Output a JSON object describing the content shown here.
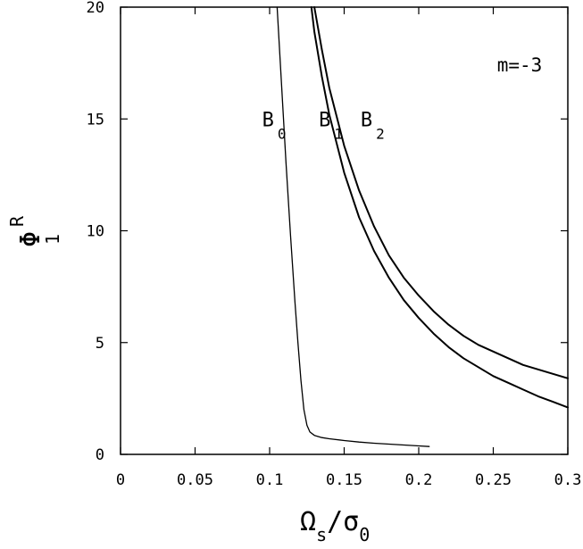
{
  "chart_data": {
    "type": "line",
    "title": "",
    "annotation": "m=-3",
    "xlabel": {
      "main": "Ω",
      "sub": "s",
      "slash": "/σ",
      "sub2": "0"
    },
    "ylabel": {
      "main": "Φ",
      "sub": "1",
      "sup": "R"
    },
    "xlim": [
      0,
      0.3
    ],
    "ylim": [
      0,
      20
    ],
    "xticks": [
      {
        "value": 0,
        "label": "0"
      },
      {
        "value": 0.05,
        "label": "0.05"
      },
      {
        "value": 0.1,
        "label": "0.1"
      },
      {
        "value": 0.15,
        "label": "0.15"
      },
      {
        "value": 0.2,
        "label": "0.2"
      },
      {
        "value": 0.25,
        "label": "0.25"
      },
      {
        "value": 0.3,
        "label": "0.3"
      }
    ],
    "yticks": [
      {
        "value": 0,
        "label": "0"
      },
      {
        "value": 5,
        "label": "5"
      },
      {
        "value": 10,
        "label": "10"
      },
      {
        "value": 15,
        "label": "15"
      },
      {
        "value": 20,
        "label": "20"
      }
    ],
    "grid": false,
    "series": [
      {
        "name": "B",
        "sub": "0",
        "label_at": [
          0.095,
          15
        ],
        "x": [
          0.105,
          0.108,
          0.111,
          0.114,
          0.117,
          0.119,
          0.121,
          0.123,
          0.125,
          0.127,
          0.13,
          0.135,
          0.14,
          0.15,
          0.16,
          0.17,
          0.18,
          0.19,
          0.2,
          0.207
        ],
        "y": [
          20.0,
          16.5,
          13.0,
          9.8,
          6.8,
          5.0,
          3.3,
          2.0,
          1.3,
          1.0,
          0.85,
          0.75,
          0.7,
          0.62,
          0.55,
          0.5,
          0.46,
          0.42,
          0.38,
          0.35
        ]
      },
      {
        "name": "B",
        "sub": "1",
        "label_at": [
          0.133,
          15
        ],
        "x": [
          0.128,
          0.13,
          0.135,
          0.14,
          0.15,
          0.16,
          0.17,
          0.18,
          0.19,
          0.2,
          0.21,
          0.22,
          0.23,
          0.24,
          0.25,
          0.26,
          0.27,
          0.28,
          0.29,
          0.3
        ],
        "y": [
          20.0,
          18.9,
          16.9,
          15.2,
          12.6,
          10.6,
          9.1,
          7.9,
          6.9,
          6.1,
          5.4,
          4.8,
          4.3,
          3.9,
          3.5,
          3.2,
          2.9,
          2.6,
          2.35,
          2.1
        ]
      },
      {
        "name": "B",
        "sub": "2",
        "label_at": [
          0.161,
          15
        ],
        "x": [
          0.13,
          0.135,
          0.14,
          0.15,
          0.16,
          0.17,
          0.18,
          0.19,
          0.2,
          0.21,
          0.22,
          0.23,
          0.24,
          0.25,
          0.26,
          0.27,
          0.28,
          0.29,
          0.3
        ],
        "y": [
          20.0,
          18.1,
          16.4,
          13.8,
          11.8,
          10.2,
          8.9,
          7.9,
          7.1,
          6.4,
          5.8,
          5.3,
          4.9,
          4.6,
          4.3,
          4.0,
          3.8,
          3.6,
          3.4
        ]
      }
    ]
  }
}
